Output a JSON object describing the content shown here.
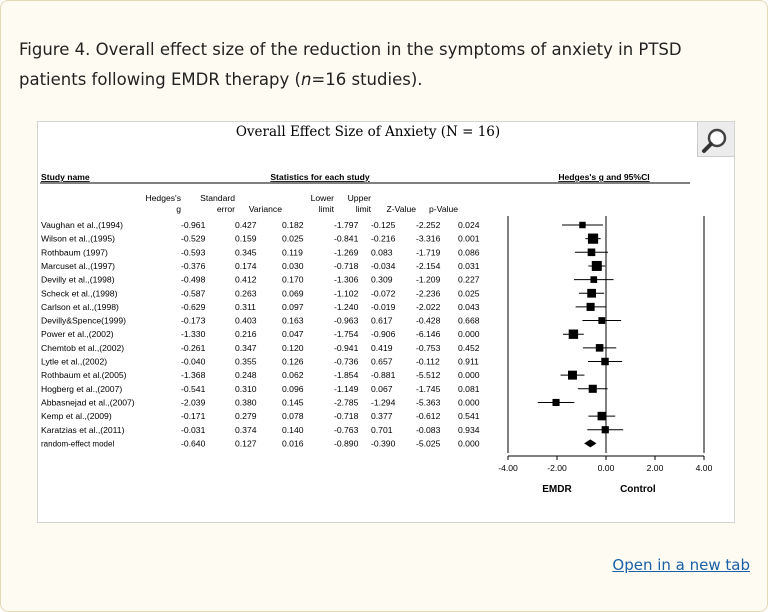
{
  "caption": {
    "prefix": "Figure 4. Overall effect size of the reduction in the symptoms of anxiety in PTSD patients following EMDR therapy (",
    "n_symbol": "n",
    "suffix": "=16 studies)."
  },
  "figure": {
    "title": "Overall Effect Size of Anxiety (N = 16)",
    "magnifier_icon": "magnifier-icon"
  },
  "open_link": "Open in a new tab",
  "chart_data": {
    "type": "forest",
    "title": "Overall Effect Size of Anxiety (N = 16)",
    "study_header": "Study name",
    "stats_header": "Statistics for each study",
    "plot_header": "Hedges's g and 95%CI",
    "column_headers": [
      [
        "Hedges's",
        "g"
      ],
      [
        "Standard",
        "error"
      ],
      [
        "",
        "Variance"
      ],
      [
        "Lower",
        "limit"
      ],
      [
        "Upper",
        "limit"
      ],
      [
        "",
        "Z-Value"
      ],
      [
        "",
        "p-Value"
      ]
    ],
    "rows": [
      {
        "study": "Vaughan et al.,(1994)",
        "g": "-0.961",
        "se": "0.427",
        "var": "0.182",
        "lower": "-1.797",
        "upper": "-0.125",
        "z": "-2.252",
        "p": "0.024"
      },
      {
        "study": "Wilson et al.,(1995)",
        "g": "-0.529",
        "se": "0.159",
        "var": "0.025",
        "lower": "-0.841",
        "upper": "-0.216",
        "z": "-3.316",
        "p": "0.001"
      },
      {
        "study": "Rothbaum (1997)",
        "g": "-0.593",
        "se": "0.345",
        "var": "0.119",
        "lower": "-1.269",
        "upper": "0.083",
        "z": "-1.719",
        "p": "0.086"
      },
      {
        "study": "Marcuset al.,(1997)",
        "g": "-0.376",
        "se": "0.174",
        "var": "0.030",
        "lower": "-0.718",
        "upper": "-0.034",
        "z": "-2.154",
        "p": "0.031"
      },
      {
        "study": "Devilly et al.,(1998)",
        "g": "-0.498",
        "se": "0.412",
        "var": "0.170",
        "lower": "-1.306",
        "upper": "0.309",
        "z": "-1.209",
        "p": "0.227"
      },
      {
        "study": "Scheck et al.,(1998)",
        "g": "-0.587",
        "se": "0.263",
        "var": "0.069",
        "lower": "-1.102",
        "upper": "-0.072",
        "z": "-2.236",
        "p": "0.025"
      },
      {
        "study": "Carlson et al.,(1998)",
        "g": "-0.629",
        "se": "0.311",
        "var": "0.097",
        "lower": "-1.240",
        "upper": "-0.019",
        "z": "-2.022",
        "p": "0.043"
      },
      {
        "study": "Devilly&Spence(1999)",
        "g": "-0.173",
        "se": "0.403",
        "var": "0.163",
        "lower": "-0.963",
        "upper": "0.617",
        "z": "-0.428",
        "p": "0.668"
      },
      {
        "study": "Power et al.,(2002)",
        "g": "-1.330",
        "se": "0.216",
        "var": "0.047",
        "lower": "-1.754",
        "upper": "-0.906",
        "z": "-6.146",
        "p": "0.000"
      },
      {
        "study": "Chemtob et al.,(2002)",
        "g": "-0.261",
        "se": "0.347",
        "var": "0.120",
        "lower": "-0.941",
        "upper": "0.419",
        "z": "-0.753",
        "p": "0.452"
      },
      {
        "study": "Lytle et al.,(2002)",
        "g": "-0.040",
        "se": "0.355",
        "var": "0.126",
        "lower": "-0.736",
        "upper": "0.657",
        "z": "-0.112",
        "p": "0.911"
      },
      {
        "study": "Rothbaum et al.(2005)",
        "g": "-1.368",
        "se": "0.248",
        "var": "0.062",
        "lower": "-1.854",
        "upper": "-0.881",
        "z": "-5.512",
        "p": "0.000"
      },
      {
        "study": "Hogberg et al.,(2007)",
        "g": "-0.541",
        "se": "0.310",
        "var": "0.096",
        "lower": "-1.149",
        "upper": "0.067",
        "z": "-1.745",
        "p": "0.081"
      },
      {
        "study": "Abbasnejad et al.,(2007)",
        "g": "-2.039",
        "se": "0.380",
        "var": "0.145",
        "lower": "-2.785",
        "upper": "-1.294",
        "z": "-5.363",
        "p": "0.000"
      },
      {
        "study": "Kemp et al.,(2009)",
        "g": "-0.171",
        "se": "0.279",
        "var": "0.078",
        "lower": "-0.718",
        "upper": "0.377",
        "z": "-0.612",
        "p": "0.541"
      },
      {
        "study": "Karatzias et al.,(2011)",
        "g": "-0.031",
        "se": "0.374",
        "var": "0.140",
        "lower": "-0.763",
        "upper": "0.701",
        "z": "-0.083",
        "p": "0.934"
      }
    ],
    "summary": {
      "study": "random-effect model",
      "g": "-0.640",
      "se": "0.127",
      "var": "0.016",
      "lower": "-0.890",
      "upper": "-0.390",
      "z": "-5.025",
      "p": "0.000"
    },
    "x_axis": {
      "min": -4,
      "max": 4,
      "ticks": [
        -4,
        -2,
        0,
        2,
        4
      ],
      "tick_labels": [
        "-4.00",
        "-2.00",
        "0.00",
        "2.00",
        "4.00"
      ]
    },
    "left_label": "EMDR",
    "right_label": "Control"
  }
}
